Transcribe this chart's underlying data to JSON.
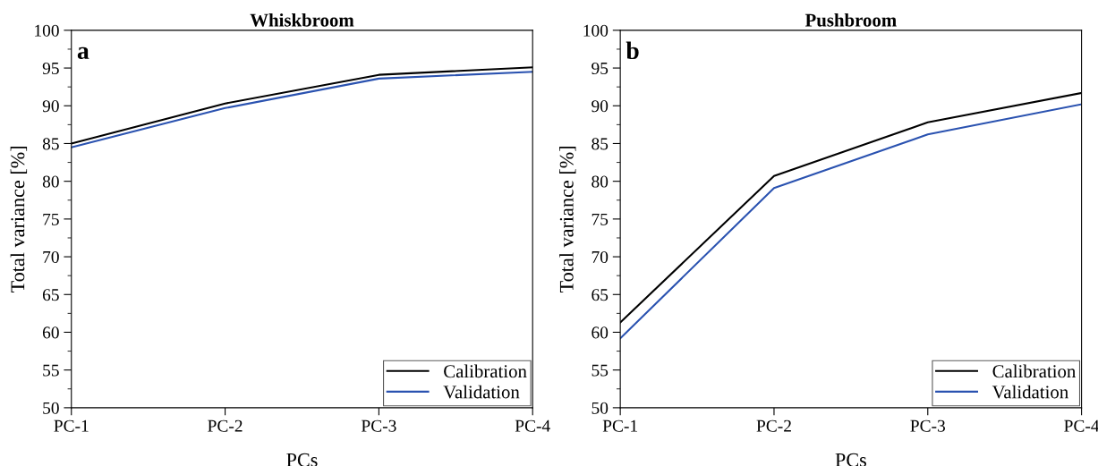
{
  "chart_data": [
    {
      "type": "line",
      "title": "Whiskbroom",
      "xlabel": "PCs",
      "ylabel": "Total variance [%]",
      "annotations": [
        "a"
      ],
      "categories": [
        "PC-1",
        "PC-2",
        "PC-3",
        "PC-4"
      ],
      "series": [
        {
          "name": "Calibration",
          "color": "#000000",
          "values": [
            85.0,
            90.3,
            94.1,
            95.1
          ]
        },
        {
          "name": "Validation",
          "color": "#2a52b0",
          "values": [
            84.5,
            89.7,
            93.6,
            94.5
          ]
        }
      ],
      "ylim": [
        50,
        100
      ],
      "yticks": [
        50,
        55,
        60,
        65,
        70,
        75,
        80,
        85,
        90,
        95,
        100
      ],
      "grid": false,
      "legend": "bottom right",
      "marker": "none",
      "line_style": "solid"
    },
    {
      "type": "line",
      "title": "Pushbroom",
      "xlabel": "PCs",
      "ylabel": "Total variance [%]",
      "annotations": [
        "b"
      ],
      "categories": [
        "PC-1",
        "PC-2",
        "PC-3",
        "PC-4"
      ],
      "series": [
        {
          "name": "Calibration",
          "color": "#000000",
          "values": [
            61.3,
            80.7,
            87.8,
            91.7
          ]
        },
        {
          "name": "Validation",
          "color": "#2a52b0",
          "values": [
            59.2,
            79.1,
            86.2,
            90.2
          ]
        }
      ],
      "ylim": [
        50,
        100
      ],
      "yticks": [
        50,
        55,
        60,
        65,
        70,
        75,
        80,
        85,
        90,
        95,
        100
      ],
      "grid": false,
      "legend": "bottom right",
      "marker": "none",
      "line_style": "solid"
    }
  ]
}
